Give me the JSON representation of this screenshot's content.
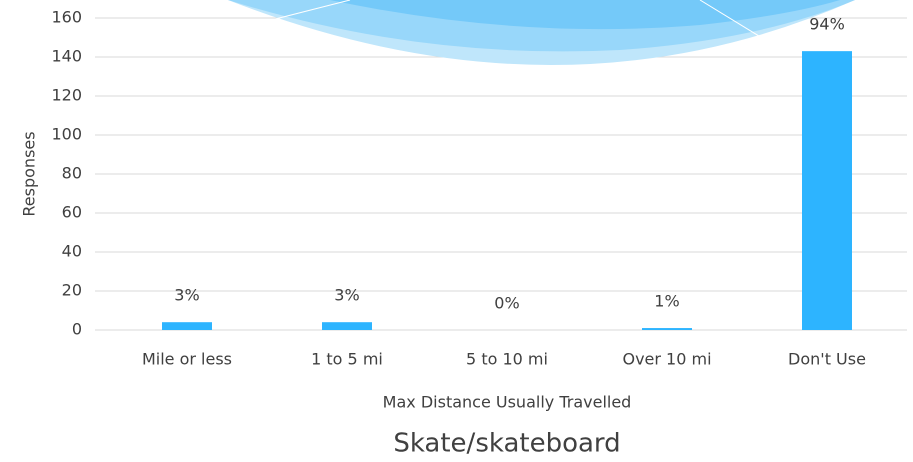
{
  "chart_data": {
    "type": "bar",
    "title": "Skate/skateboard",
    "x_label": "Max Distance Usually Travelled",
    "y_label": "Responses",
    "categories": [
      "Mile or less",
      "1 to 5 mi",
      "5 to 10 mi",
      "Over 10 mi",
      "Don't Use"
    ],
    "values": [
      4,
      4,
      0,
      1,
      143
    ],
    "value_labels": [
      "3%",
      "3%",
      "0%",
      "1%",
      "94%"
    ],
    "color": "#2db4ff",
    "ylim": [
      0,
      160
    ],
    "yticks": [
      0,
      20,
      40,
      60,
      80,
      100,
      120,
      140,
      160
    ],
    "grid": true
  }
}
